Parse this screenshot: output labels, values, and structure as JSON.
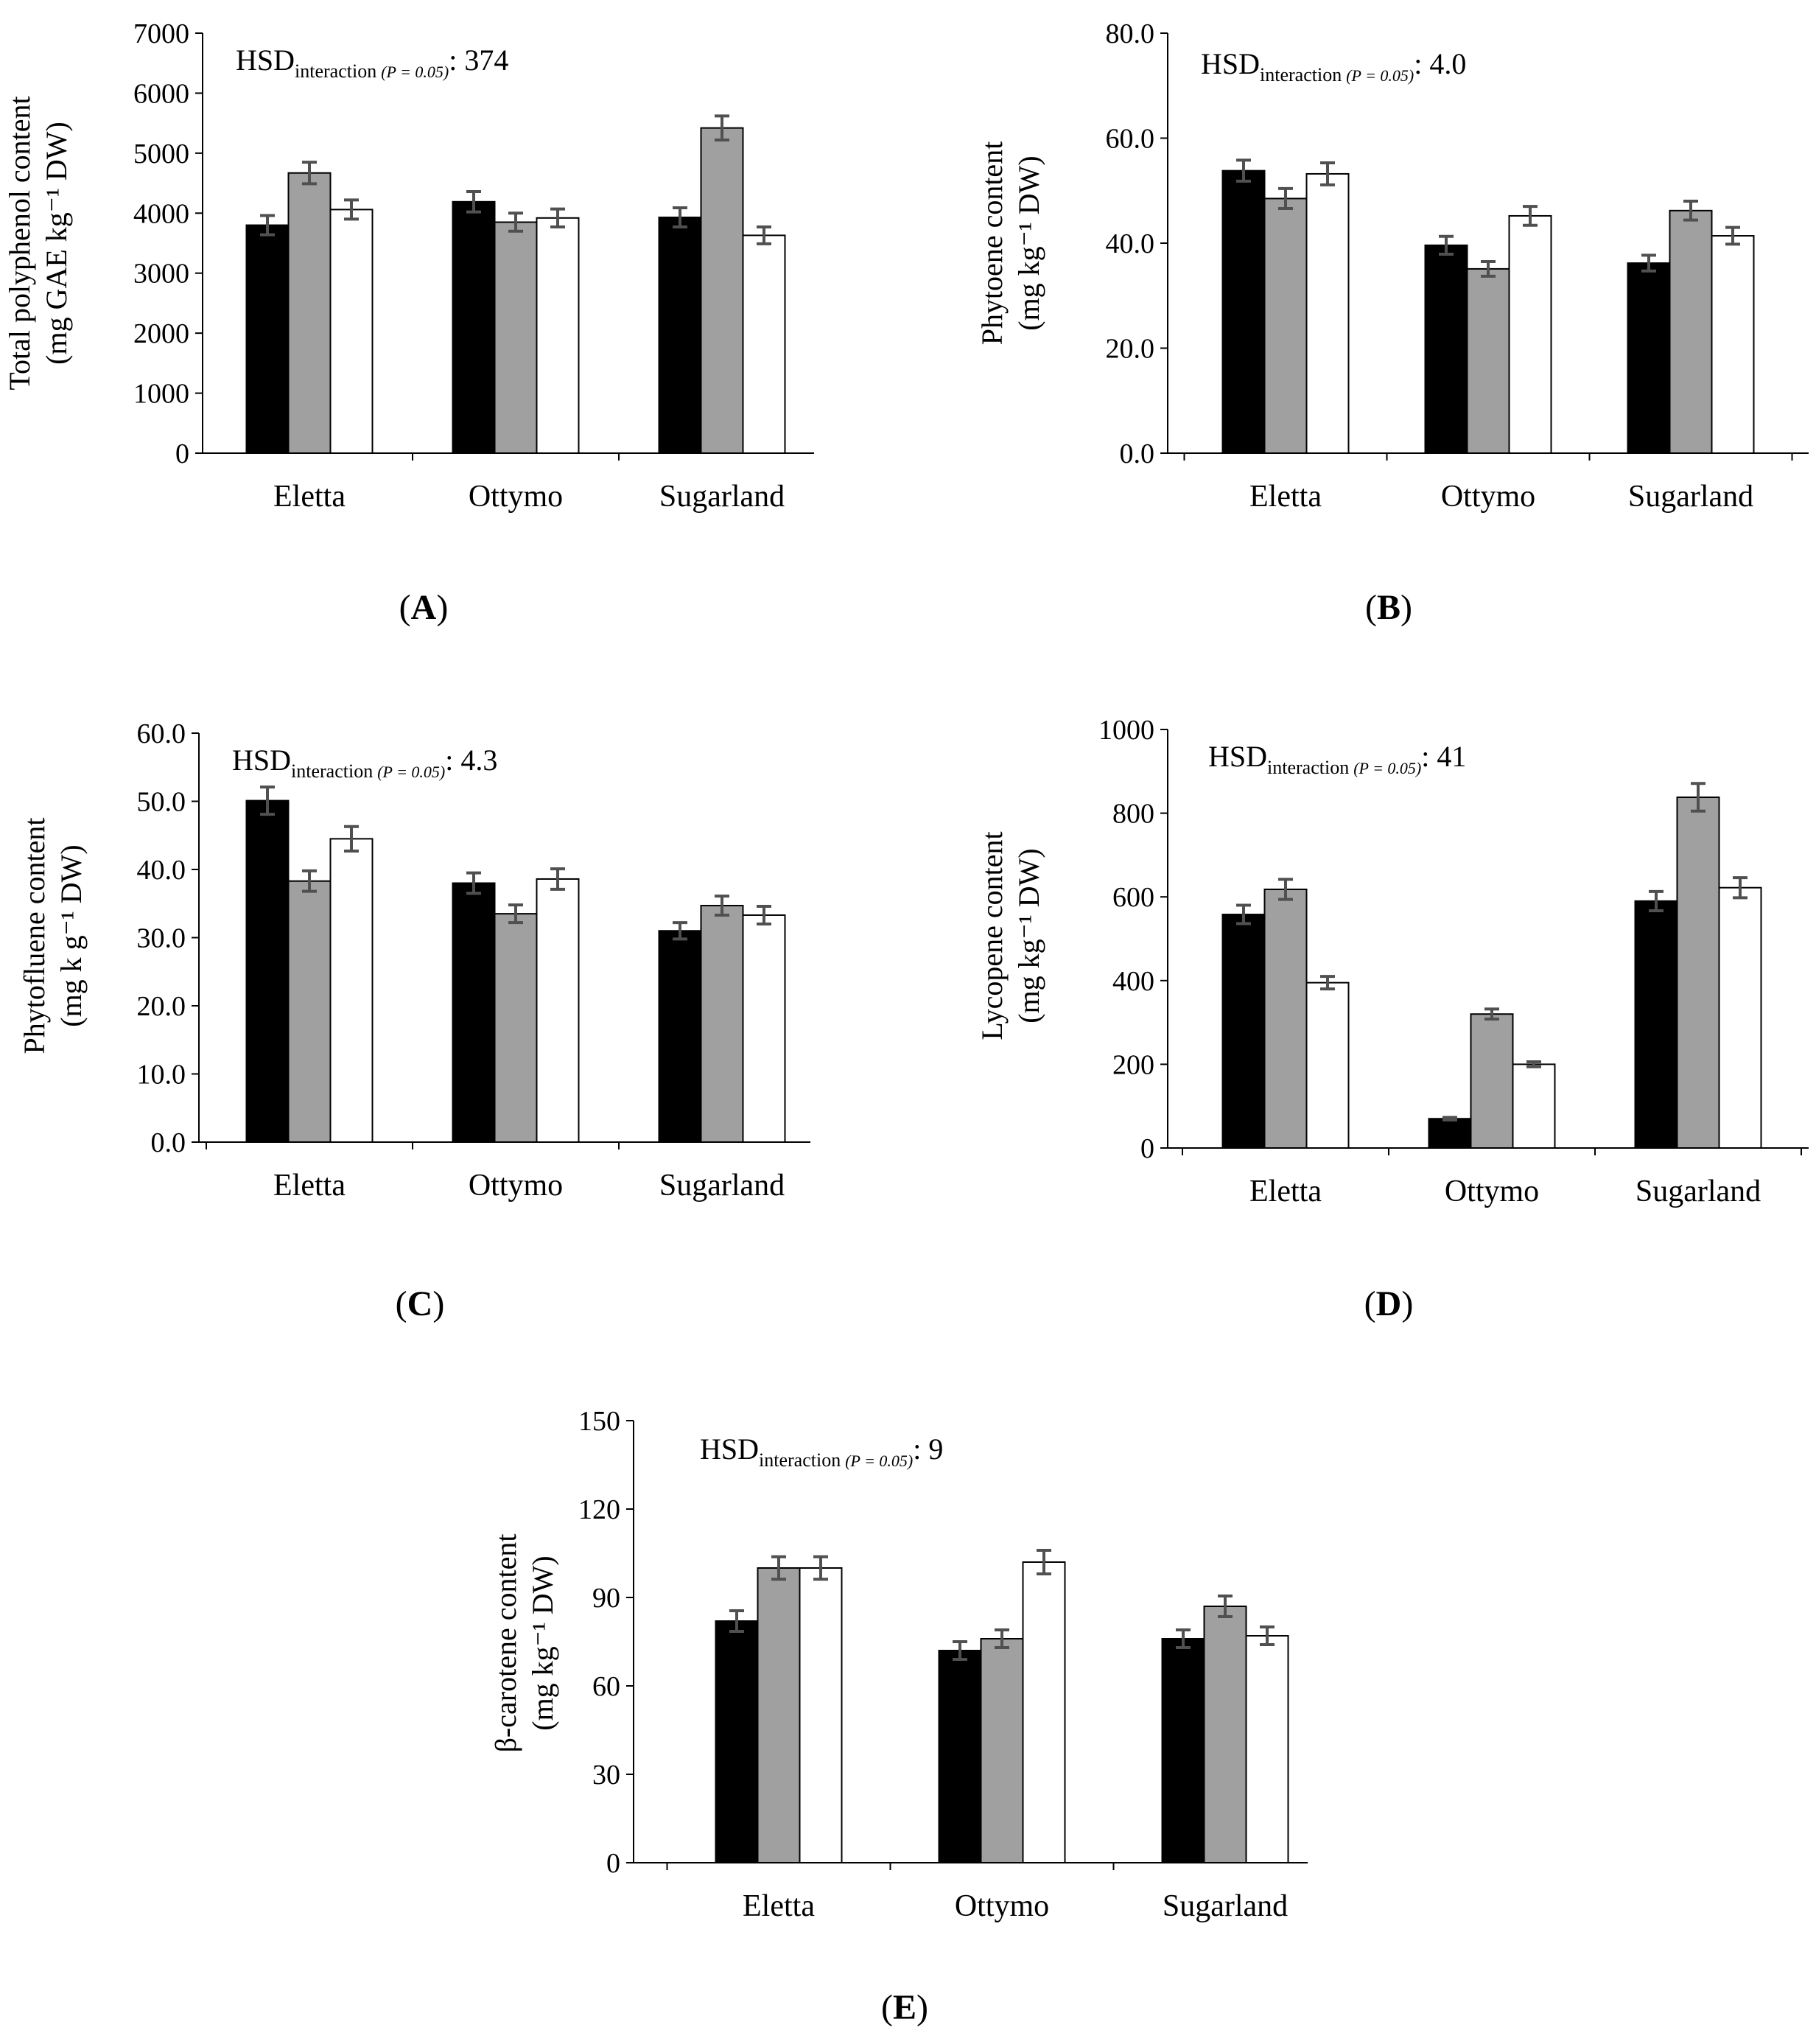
{
  "figure": {
    "categories": [
      "Eletta",
      "Ottymo",
      "Sugarland"
    ],
    "series_colors": [
      "#000000",
      "#a0a0a0",
      "#ffffff"
    ],
    "error_bar_color": "#505050"
  },
  "chart_data": [
    {
      "id": "A",
      "panel_label": "A",
      "type": "bar",
      "title": "",
      "ylabel_line1": "Total polyphenol content",
      "ylabel_line2": "(mg GAE kg⁻¹ DW)",
      "hsd_main": "HSD",
      "hsd_sub": "interaction",
      "hsd_p": "(P = 0.05)",
      "hsd_value": ": 374",
      "ylim": [
        0,
        7000
      ],
      "yticks": [
        0,
        1000,
        2000,
        3000,
        4000,
        5000,
        6000,
        7000
      ],
      "tick_labels": [
        "0",
        "1000",
        "2000",
        "3000",
        "4000",
        "5000",
        "6000",
        "7000"
      ],
      "categories": [
        "Eletta",
        "Ottymo",
        "Sugarland"
      ],
      "series": [
        {
          "name": "series 1 (black)",
          "values": [
            3800,
            4190,
            3930
          ],
          "errors": [
            160,
            170,
            160
          ]
        },
        {
          "name": "series 2 (grey)",
          "values": [
            4670,
            3850,
            5420
          ],
          "errors": [
            180,
            150,
            200
          ]
        },
        {
          "name": "series 3 (white)",
          "values": [
            4060,
            3920,
            3630
          ],
          "errors": [
            160,
            150,
            140
          ]
        }
      ]
    },
    {
      "id": "B",
      "panel_label": "B",
      "type": "bar",
      "title": "",
      "ylabel_line1": "Phytoene content",
      "ylabel_line2": "(mg kg⁻¹ DW)",
      "hsd_main": "HSD",
      "hsd_sub": "interaction",
      "hsd_p": "(P = 0.05)",
      "hsd_value": ": 4.0",
      "ylim": [
        0,
        80
      ],
      "yticks": [
        0,
        20,
        40,
        60,
        80
      ],
      "tick_labels": [
        "0.0",
        "20.0",
        "40.0",
        "60.0",
        "80.0"
      ],
      "categories": [
        "Eletta",
        "Ottymo",
        "Sugarland"
      ],
      "series": [
        {
          "name": "series 1 (black)",
          "values": [
            53.8,
            39.6,
            36.2
          ],
          "errors": [
            2.0,
            1.7,
            1.5
          ]
        },
        {
          "name": "series 2 (grey)",
          "values": [
            48.5,
            35.1,
            46.2
          ],
          "errors": [
            1.9,
            1.4,
            1.8
          ]
        },
        {
          "name": "series 3 (white)",
          "values": [
            53.2,
            45.2,
            41.4
          ],
          "errors": [
            2.1,
            1.8,
            1.6
          ]
        }
      ]
    },
    {
      "id": "C",
      "panel_label": "C",
      "type": "bar",
      "title": "",
      "ylabel_line1": "Phytofluene content",
      "ylabel_line2": "(mg k g⁻¹ DW)",
      "hsd_main": "HSD",
      "hsd_sub": "interaction",
      "hsd_p": "(P = 0.05)",
      "hsd_value": ": 4.3",
      "ylim": [
        0,
        60
      ],
      "yticks": [
        0,
        10,
        20,
        30,
        40,
        50,
        60
      ],
      "tick_labels": [
        "0.0",
        "10.0",
        "20.0",
        "30.0",
        "40.0",
        "50.0",
        "60.0"
      ],
      "categories": [
        "Eletta",
        "Ottymo",
        "Sugarland"
      ],
      "series": [
        {
          "name": "series 1 (black)",
          "values": [
            50.1,
            38.0,
            31.0
          ],
          "errors": [
            2.0,
            1.5,
            1.2
          ]
        },
        {
          "name": "series 2 (grey)",
          "values": [
            38.3,
            33.5,
            34.7
          ],
          "errors": [
            1.5,
            1.3,
            1.4
          ]
        },
        {
          "name": "series 3 (white)",
          "values": [
            44.5,
            38.6,
            33.3
          ],
          "errors": [
            1.8,
            1.5,
            1.3
          ]
        }
      ]
    },
    {
      "id": "D",
      "panel_label": "D",
      "type": "bar",
      "title": "",
      "ylabel_line1": "Lycopene content",
      "ylabel_line2": "(mg kg⁻¹ DW)",
      "hsd_main": "HSD",
      "hsd_sub": "interaction",
      "hsd_p": "(P = 0.05)",
      "hsd_value": ": 41",
      "ylim": [
        0,
        1000
      ],
      "yticks": [
        0,
        200,
        400,
        600,
        800,
        1000
      ],
      "tick_labels": [
        "0",
        "200",
        "400",
        "600",
        "800",
        "1000"
      ],
      "categories": [
        "Eletta",
        "Ottymo",
        "Sugarland"
      ],
      "series": [
        {
          "name": "series 1 (black)",
          "values": [
            558,
            70,
            590
          ],
          "errors": [
            22,
            3,
            23
          ]
        },
        {
          "name": "series 2 (grey)",
          "values": [
            618,
            320,
            838
          ],
          "errors": [
            24,
            12,
            33
          ]
        },
        {
          "name": "series 3 (white)",
          "values": [
            395,
            200,
            622
          ],
          "errors": [
            15,
            6,
            24
          ]
        }
      ]
    },
    {
      "id": "E",
      "panel_label": "E",
      "type": "bar",
      "title": "",
      "ylabel_line1": "β-carotene content",
      "ylabel_line2": "(mg kg⁻¹ DW)",
      "hsd_main": "HSD",
      "hsd_sub": "interaction",
      "hsd_p": "(P = 0.05)",
      "hsd_value": ": 9",
      "ylim": [
        0,
        150
      ],
      "yticks": [
        0,
        30,
        60,
        90,
        120,
        150
      ],
      "tick_labels": [
        "0",
        "30",
        "60",
        "90",
        "120",
        "150"
      ],
      "categories": [
        "Eletta",
        "Ottymo",
        "Sugarland"
      ],
      "series": [
        {
          "name": "series 1 (black)",
          "values": [
            82,
            72,
            76
          ],
          "errors": [
            3.5,
            3.0,
            3.0
          ]
        },
        {
          "name": "series 2 (grey)",
          "values": [
            100,
            76,
            87
          ],
          "errors": [
            3.8,
            3.0,
            3.5
          ]
        },
        {
          "name": "series 3 (white)",
          "values": [
            100,
            102,
            77
          ],
          "errors": [
            3.8,
            4.0,
            3.0
          ]
        }
      ]
    }
  ]
}
